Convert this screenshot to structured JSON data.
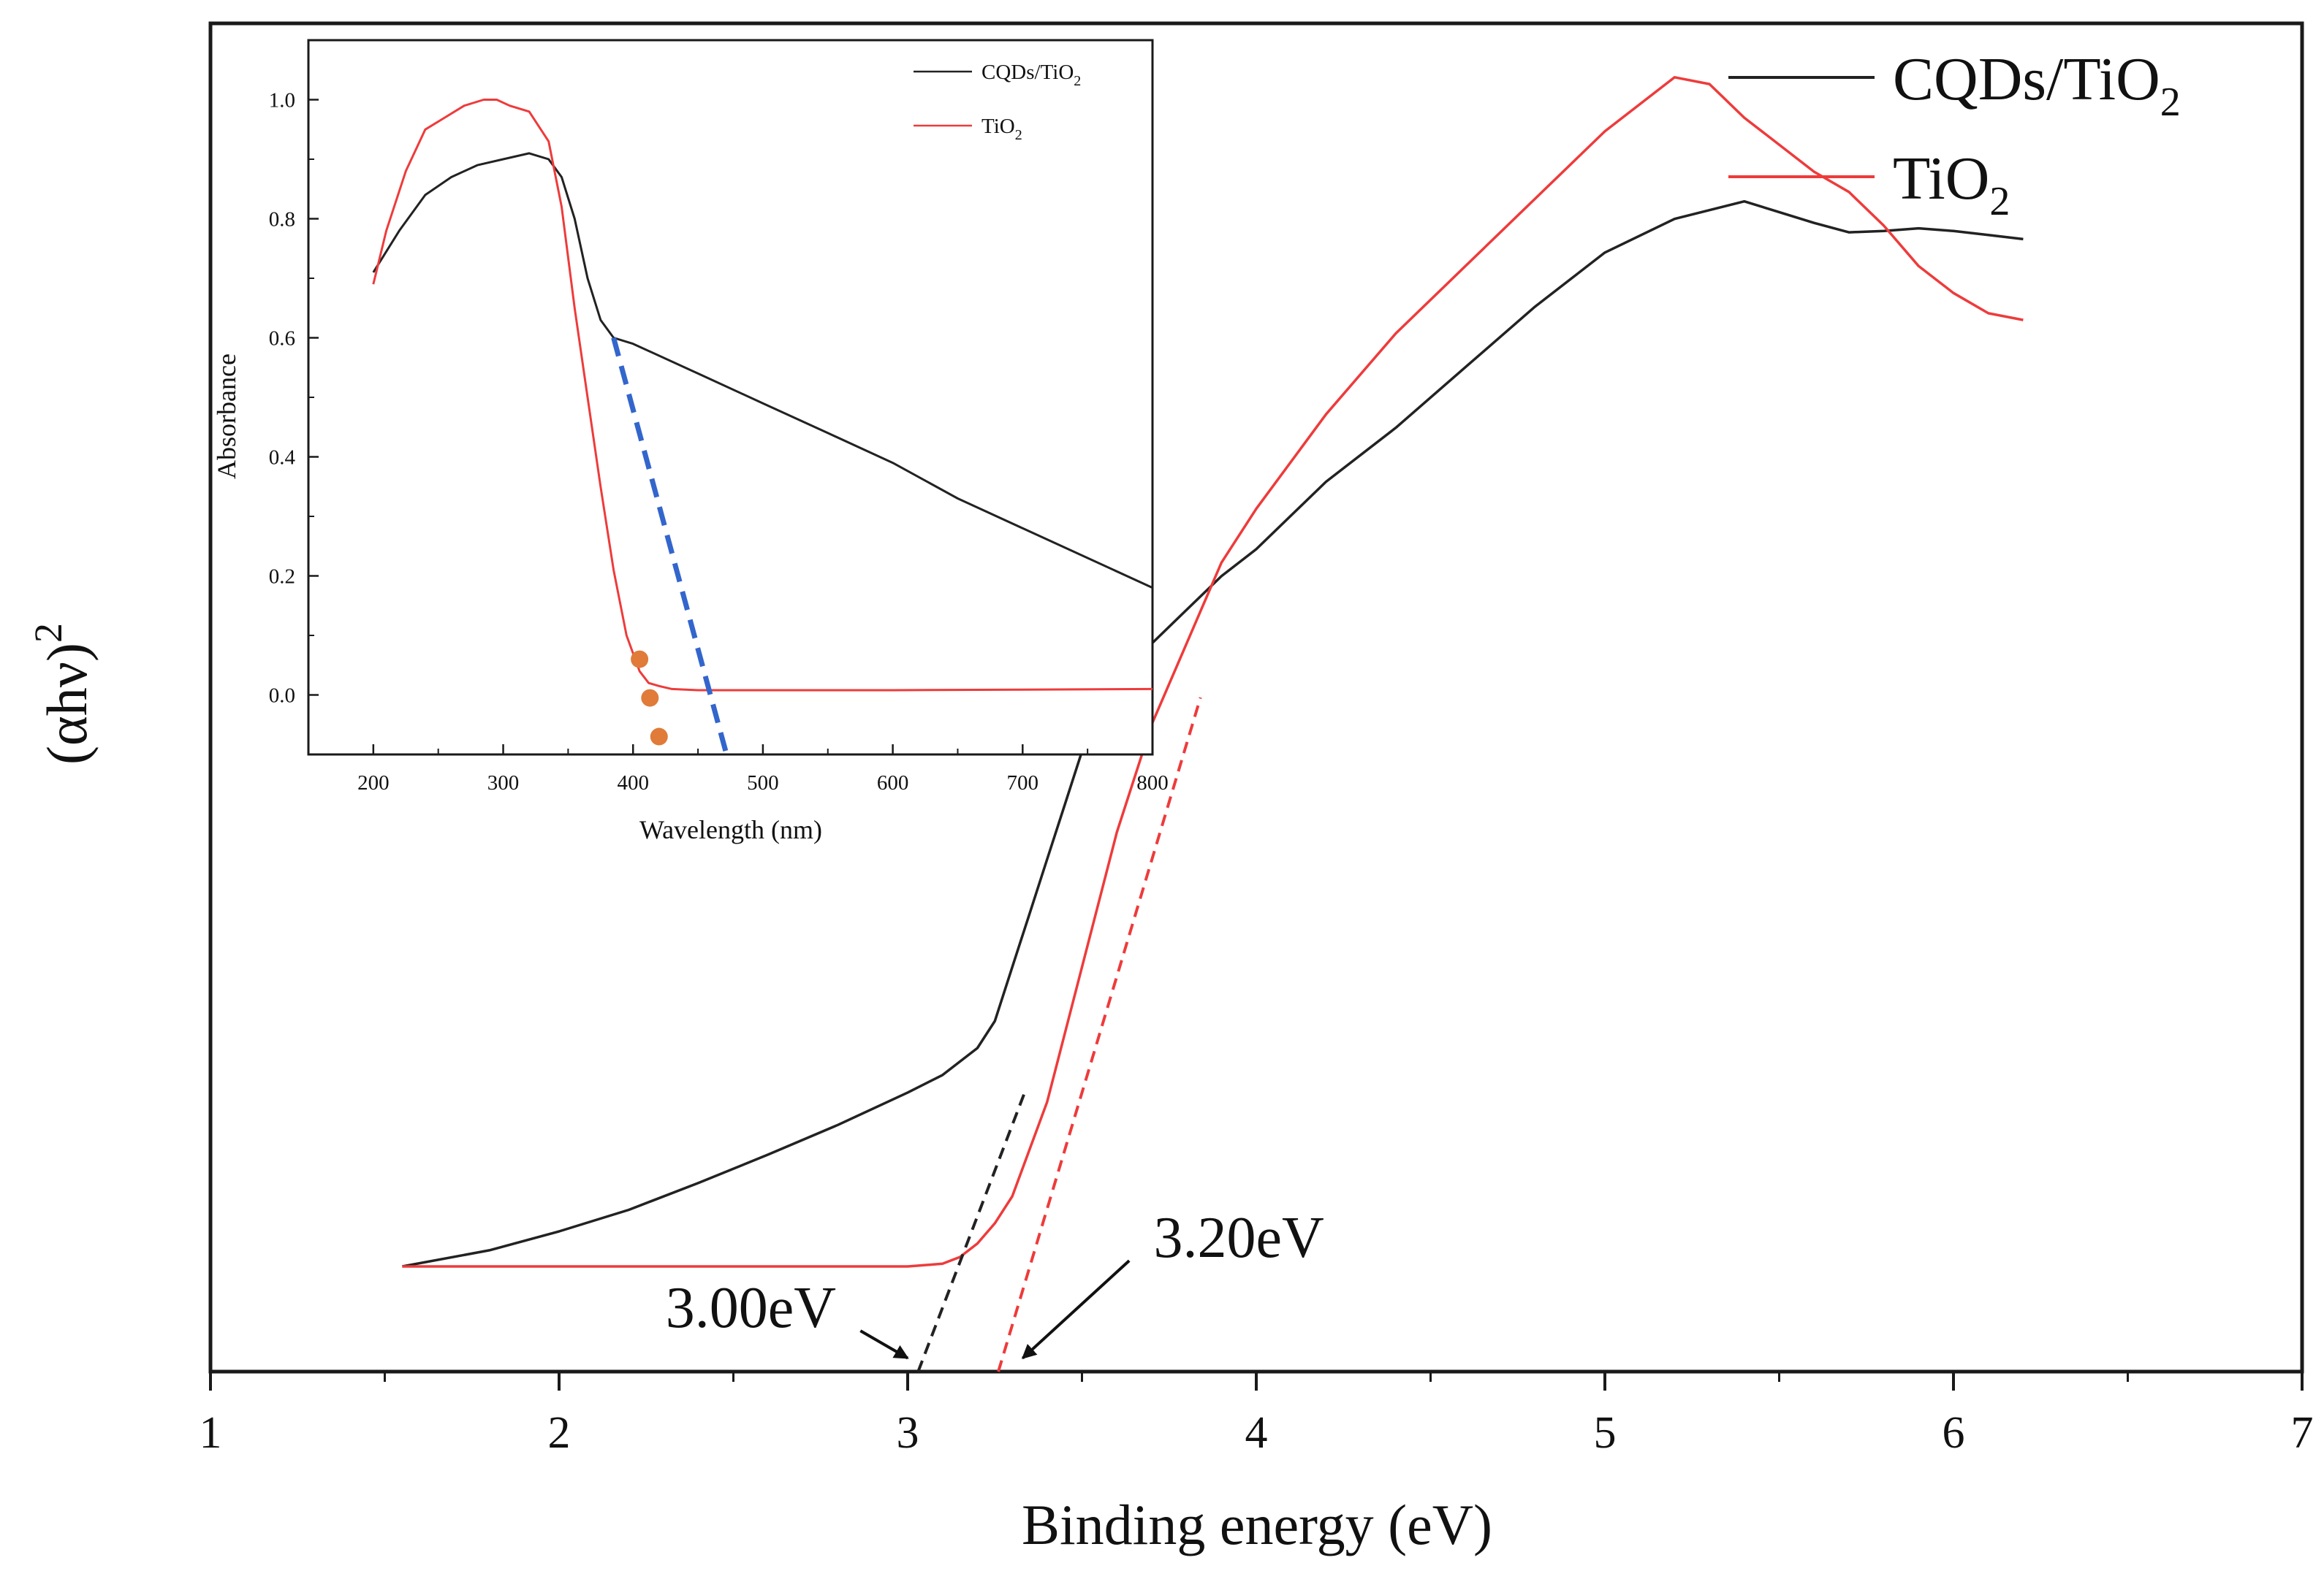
{
  "chart_data": [
    {
      "type": "line",
      "title": "",
      "xlabel": "Binding energy (eV)",
      "ylabel_base": "(αhν)",
      "ylabel_sup": "2",
      "xlim": [
        1,
        7
      ],
      "ylim": [
        0,
        1.0
      ],
      "xticks": [
        "1",
        "2",
        "3",
        "4",
        "5",
        "6",
        "7"
      ],
      "series": [
        {
          "name": "CQDs/TiO2",
          "name_base": "CQDs/TiO",
          "name_sub": "2",
          "color": "#222222",
          "x": [
            1.55,
            1.8,
            2.0,
            2.2,
            2.4,
            2.6,
            2.8,
            3.0,
            3.1,
            3.2,
            3.25,
            3.3,
            3.35,
            3.4,
            3.45,
            3.5,
            3.55,
            3.6,
            3.7,
            3.8,
            3.9,
            4.0,
            4.2,
            4.4,
            4.6,
            4.8,
            5.0,
            5.2,
            5.4,
            5.5,
            5.6,
            5.7,
            5.8,
            5.9,
            6.0,
            6.1,
            6.2
          ],
          "y": [
            0.078,
            0.09,
            0.104,
            0.12,
            0.14,
            0.161,
            0.183,
            0.207,
            0.22,
            0.24,
            0.26,
            0.3,
            0.34,
            0.38,
            0.42,
            0.46,
            0.49,
            0.51,
            0.54,
            0.565,
            0.59,
            0.61,
            0.66,
            0.7,
            0.745,
            0.79,
            0.83,
            0.855,
            0.868,
            0.86,
            0.852,
            0.845,
            0.846,
            0.848,
            0.846,
            0.843,
            0.84
          ]
        },
        {
          "name": "TiO2",
          "name_base": "TiO",
          "name_sub": "2",
          "color": "#ee3b3b",
          "x": [
            1.55,
            2.0,
            2.5,
            3.0,
            3.1,
            3.15,
            3.2,
            3.25,
            3.3,
            3.4,
            3.5,
            3.6,
            3.7,
            3.8,
            3.9,
            4.0,
            4.2,
            4.4,
            4.6,
            4.8,
            5.0,
            5.2,
            5.3,
            5.4,
            5.5,
            5.6,
            5.7,
            5.8,
            5.9,
            6.0,
            6.1,
            6.2
          ],
          "y": [
            0.078,
            0.078,
            0.078,
            0.078,
            0.08,
            0.085,
            0.095,
            0.11,
            0.13,
            0.2,
            0.3,
            0.4,
            0.48,
            0.54,
            0.6,
            0.64,
            0.71,
            0.77,
            0.82,
            0.87,
            0.92,
            0.96,
            0.955,
            0.93,
            0.91,
            0.89,
            0.875,
            0.85,
            0.82,
            0.8,
            0.785,
            0.78
          ]
        }
      ],
      "tangents": [
        {
          "color": "#222222",
          "from": [
            3.03,
            0.0
          ],
          "to": [
            3.34,
            0.21
          ]
        },
        {
          "color": "#ee3b3b",
          "from": [
            3.26,
            0.0
          ],
          "to": [
            3.84,
            0.5
          ]
        }
      ],
      "annotations": [
        {
          "text": "3.00eV",
          "text_at": [
            2.55,
            0.033
          ],
          "arrow_to": [
            3.0,
            0.01
          ]
        },
        {
          "text": "3.20eV",
          "text_at": [
            3.95,
            0.085
          ],
          "arrow_to": [
            3.33,
            0.01
          ]
        }
      ],
      "legend": "top-right"
    },
    {
      "type": "line",
      "title": "",
      "xlabel": "Wavelength (nm)",
      "ylabel": "Absorbance",
      "xlim": [
        150,
        800
      ],
      "ylim": [
        -0.1,
        1.1
      ],
      "xticks": [
        "200",
        "300",
        "400",
        "500",
        "600",
        "700",
        "800"
      ],
      "yticks": [
        "0.0",
        "0.2",
        "0.4",
        "0.6",
        "0.8",
        "1.0"
      ],
      "series": [
        {
          "name": "CQDs/TiO2",
          "name_base": "CQDs/TiO",
          "name_sub": "2",
          "color": "#222222",
          "x": [
            200,
            220,
            240,
            260,
            280,
            300,
            320,
            335,
            345,
            355,
            365,
            375,
            385,
            400,
            450,
            500,
            550,
            600,
            650,
            700,
            750,
            800
          ],
          "y": [
            0.71,
            0.78,
            0.84,
            0.87,
            0.89,
            0.9,
            0.91,
            0.9,
            0.87,
            0.8,
            0.7,
            0.63,
            0.6,
            0.59,
            0.54,
            0.49,
            0.44,
            0.39,
            0.33,
            0.28,
            0.23,
            0.18
          ]
        },
        {
          "name": "TiO2",
          "name_base": "TiO",
          "name_sub": "2",
          "color": "#ee3b3b",
          "x": [
            200,
            210,
            225,
            240,
            255,
            270,
            285,
            295,
            305,
            320,
            335,
            345,
            355,
            365,
            375,
            385,
            395,
            405,
            412,
            420,
            430,
            450,
            500,
            600,
            700,
            800
          ],
          "y": [
            0.69,
            0.78,
            0.88,
            0.95,
            0.97,
            0.99,
            1.0,
            1.0,
            0.99,
            0.98,
            0.93,
            0.82,
            0.65,
            0.5,
            0.35,
            0.21,
            0.1,
            0.04,
            0.02,
            0.015,
            0.01,
            0.008,
            0.008,
            0.008,
            0.009,
            0.01
          ]
        }
      ],
      "tangent": {
        "color": "#3366cc",
        "from": [
          385,
          0.6
        ],
        "to": [
          472,
          -0.1
        ]
      },
      "markers": {
        "color": "#e07b39",
        "points": [
          [
            405,
            0.06
          ],
          [
            413,
            -0.005
          ],
          [
            420,
            -0.07
          ]
        ]
      },
      "legend": "top-right"
    }
  ]
}
